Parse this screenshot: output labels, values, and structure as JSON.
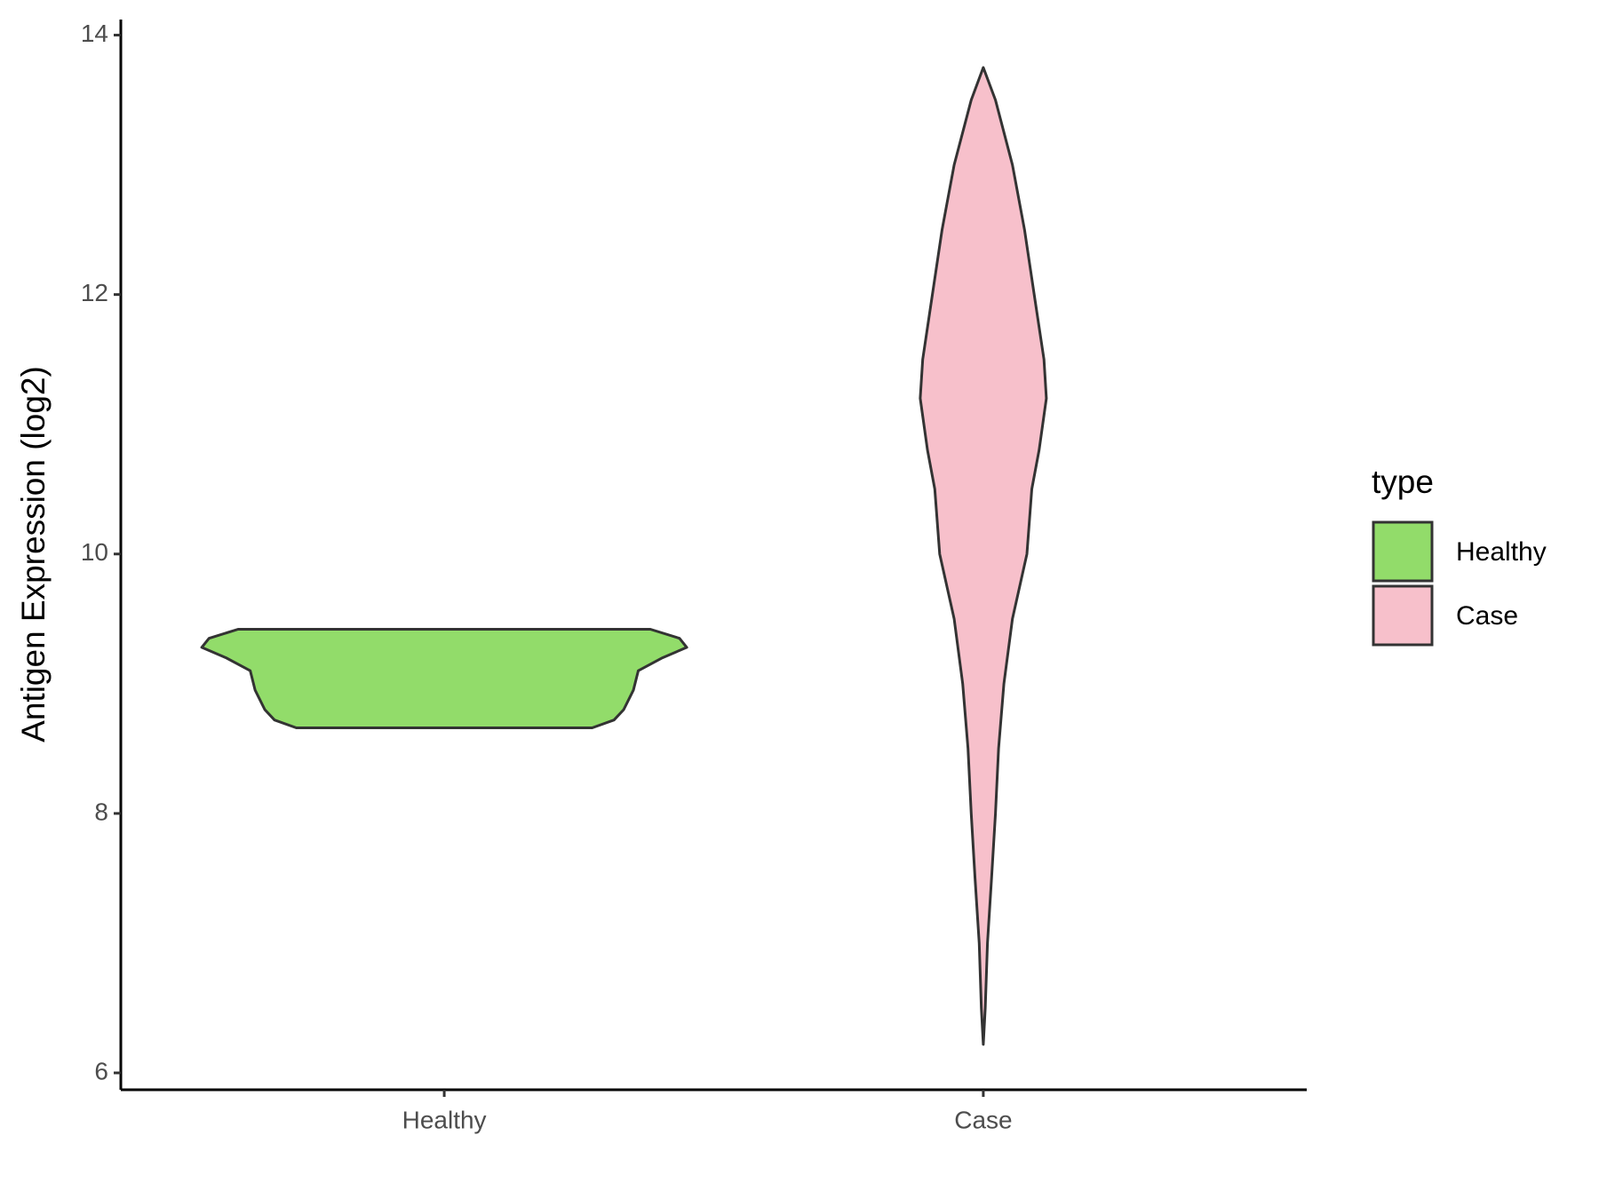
{
  "chart_data": {
    "type": "violin",
    "y_label": "Antigen Expression (log2)",
    "categories": [
      "Healthy",
      "Case"
    ],
    "series": [
      {
        "name": "Healthy",
        "color": "#92dc6a",
        "y": [
          9.42,
          9.35,
          9.28,
          9.2,
          9.1,
          8.95,
          8.8,
          8.72,
          8.66
        ],
        "density": [
          0.85,
          0.97,
          1.0,
          0.9,
          0.8,
          0.78,
          0.74,
          0.7,
          0.61
        ]
      },
      {
        "name": "Case",
        "color": "#f7c0cb",
        "y": [
          13.75,
          13.5,
          13.0,
          12.5,
          12.0,
          11.5,
          11.2,
          10.8,
          10.5,
          10.0,
          9.5,
          9.0,
          8.5,
          8.0,
          7.5,
          7.0,
          6.5,
          6.22
        ],
        "density": [
          0,
          0.05,
          0.12,
          0.17,
          0.21,
          0.25,
          0.26,
          0.23,
          0.2,
          0.18,
          0.12,
          0.085,
          0.063,
          0.05,
          0.034,
          0.017,
          0.008,
          0
        ]
      }
    ],
    "ylim": [
      5.87,
      14.12
    ],
    "yticks": [
      6,
      8,
      10,
      12,
      14
    ],
    "legend_title": "type",
    "legend_position": "right"
  }
}
